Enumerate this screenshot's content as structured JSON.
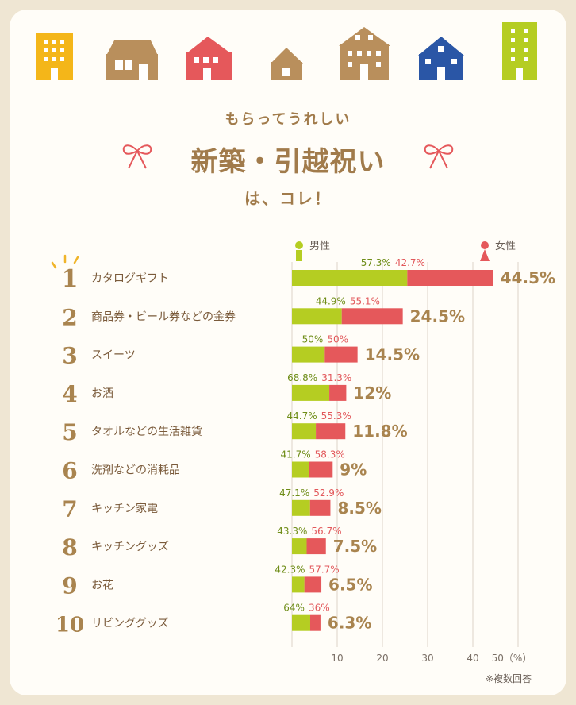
{
  "heading": {
    "subtitle": "もらってうれしい",
    "title": "新築・引越祝い",
    "title_line3": "は、コレ！"
  },
  "legend": {
    "male": "男性",
    "female": "女性"
  },
  "note": "※複数回答",
  "colors": {
    "male": "#b5cd22",
    "female": "#e5585b",
    "brown": "#a9844f",
    "background": "#efe6d3"
  },
  "chart_data": {
    "type": "bar",
    "orientation": "horizontal",
    "stacked": true,
    "categories": [
      "カタログギフト",
      "商品券・ビール券などの金券",
      "スイーツ",
      "お酒",
      "タオルなどの生活雑貨",
      "洗剤などの消耗品",
      "キッチン家電",
      "キッチングッズ",
      "お花",
      "リビンググッズ"
    ],
    "ranks": [
      "1",
      "2",
      "3",
      "4",
      "5",
      "6",
      "7",
      "8",
      "9",
      "10"
    ],
    "total_labels": [
      "44.5%",
      "24.5%",
      "14.5%",
      "12%",
      "11.8%",
      "9%",
      "8.5%",
      "7.5%",
      "6.5%",
      "6.3%"
    ],
    "totals": [
      44.5,
      24.5,
      14.5,
      12,
      11.8,
      9,
      8.5,
      7.5,
      6.5,
      6.3
    ],
    "series": [
      {
        "name": "男性",
        "share_labels": [
          "57.3%",
          "44.9%",
          "50%",
          "68.8%",
          "44.7%",
          "41.7%",
          "47.1%",
          "43.3%",
          "42.3%",
          "64%"
        ],
        "share": [
          57.3,
          44.9,
          50,
          68.8,
          44.7,
          41.7,
          47.1,
          43.3,
          42.3,
          64
        ]
      },
      {
        "name": "女性",
        "share_labels": [
          "42.7%",
          "55.1%",
          "50%",
          "31.3%",
          "55.3%",
          "58.3%",
          "52.9%",
          "56.7%",
          "57.7%",
          "36%"
        ],
        "share": [
          42.7,
          55.1,
          50,
          31.3,
          55.3,
          58.3,
          52.9,
          56.7,
          57.7,
          36
        ]
      }
    ],
    "x_ticks": [
      "10",
      "20",
      "30",
      "40",
      "50（%）"
    ],
    "xlim": [
      0,
      50
    ],
    "grid": true
  }
}
